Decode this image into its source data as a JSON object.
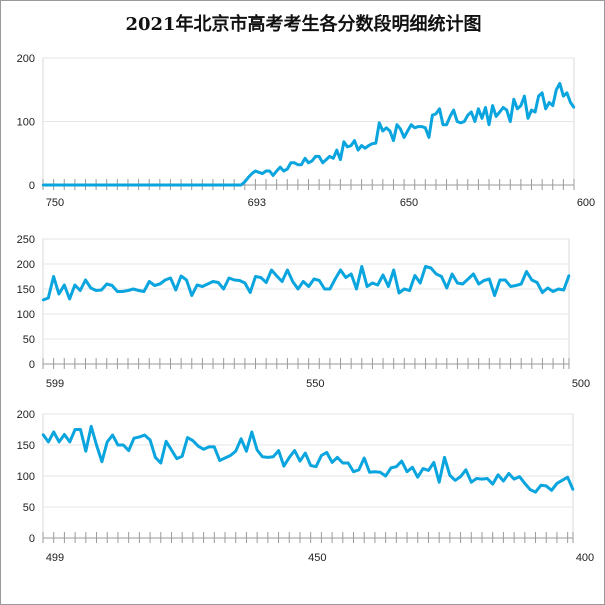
{
  "title": "2021年北京市高考考生各分数段明细统计图",
  "colors": {
    "line": "#0aa5de",
    "grid": "#e6e6e6",
    "axis": "#9a9a9a"
  },
  "chart_data": [
    {
      "type": "line",
      "xlabel": "",
      "ylabel": "",
      "x_start": 750,
      "x_end": 600,
      "x_tick_labels": [
        {
          "label": "750",
          "value": 750
        },
        {
          "label": "693",
          "value": 693
        },
        {
          "label": "650",
          "value": 650
        },
        {
          "label": "600",
          "value": 600
        }
      ],
      "ylim": [
        0,
        200
      ],
      "y_ticks": [
        0,
        100,
        200
      ],
      "grid": true,
      "values": [
        0,
        0,
        0,
        0,
        0,
        0,
        0,
        0,
        0,
        0,
        0,
        0,
        0,
        0,
        0,
        0,
        0,
        0,
        0,
        0,
        0,
        0,
        0,
        0,
        0,
        0,
        0,
        0,
        0,
        0,
        0,
        0,
        0,
        0,
        0,
        0,
        0,
        0,
        0,
        0,
        0,
        0,
        0,
        0,
        0,
        0,
        0,
        0,
        0,
        0,
        0,
        0,
        0,
        0,
        0,
        0,
        0,
        5,
        12,
        18,
        22,
        20,
        18,
        22,
        22,
        15,
        22,
        28,
        22,
        25,
        35,
        35,
        32,
        32,
        42,
        35,
        38,
        45,
        45,
        35,
        40,
        45,
        42,
        55,
        40,
        68,
        60,
        62,
        70,
        55,
        62,
        58,
        62,
        65,
        66,
        98,
        85,
        90,
        85,
        70,
        95,
        88,
        75,
        85,
        95,
        90,
        92,
        92,
        90,
        75,
        110,
        112,
        120,
        95,
        95,
        108,
        118,
        100,
        98,
        100,
        110,
        115,
        100,
        120,
        105,
        122,
        95,
        125,
        108,
        115,
        122,
        118,
        100,
        135,
        120,
        125,
        140,
        105,
        118,
        115,
        140,
        145,
        120,
        130,
        125,
        150,
        160,
        140,
        145,
        130,
        122
      ]
    },
    {
      "type": "line",
      "xlabel": "",
      "ylabel": "",
      "x_start": 599,
      "x_end": 500,
      "x_tick_labels": [
        {
          "label": "599",
          "value": 599
        },
        {
          "label": "550",
          "value": 550
        },
        {
          "label": "500",
          "value": 500
        }
      ],
      "ylim": [
        0,
        250
      ],
      "y_ticks": [
        0,
        50,
        100,
        150,
        200,
        250
      ],
      "grid": true,
      "values": [
        128,
        132,
        175,
        140,
        158,
        130,
        158,
        147,
        168,
        152,
        147,
        148,
        160,
        157,
        145,
        145,
        147,
        150,
        147,
        145,
        165,
        157,
        160,
        168,
        172,
        148,
        176,
        168,
        137,
        158,
        155,
        160,
        165,
        163,
        150,
        172,
        168,
        167,
        162,
        143,
        175,
        173,
        163,
        188,
        176,
        165,
        188,
        165,
        150,
        165,
        155,
        170,
        167,
        150,
        150,
        170,
        188,
        173,
        180,
        150,
        195,
        155,
        162,
        158,
        178,
        155,
        188,
        142,
        150,
        147,
        177,
        162,
        195,
        192,
        180,
        175,
        152,
        180,
        162,
        160,
        170,
        180,
        160,
        167,
        170,
        137,
        168,
        168,
        155,
        157,
        160,
        185,
        168,
        163,
        143,
        152,
        145,
        150,
        148,
        177
      ]
    },
    {
      "type": "line",
      "xlabel": "",
      "ylabel": "",
      "x_start": 499,
      "x_end": 400,
      "x_tick_labels": [
        {
          "label": "499",
          "value": 499
        },
        {
          "label": "450",
          "value": 450
        },
        {
          "label": "400",
          "value": 400
        }
      ],
      "ylim": [
        0,
        200
      ],
      "y_ticks": [
        0,
        50,
        100,
        150,
        200
      ],
      "grid": true,
      "values": [
        167,
        155,
        171,
        155,
        167,
        155,
        175,
        175,
        140,
        180,
        150,
        123,
        155,
        166,
        150,
        150,
        141,
        161,
        163,
        166,
        158,
        130,
        121,
        156,
        142,
        128,
        132,
        162,
        157,
        148,
        143,
        147,
        147,
        125,
        129,
        133,
        140,
        160,
        140,
        171,
        142,
        131,
        130,
        131,
        141,
        116,
        130,
        141,
        124,
        137,
        117,
        115,
        133,
        138,
        122,
        130,
        121,
        121,
        107,
        110,
        129,
        106,
        107,
        106,
        100,
        113,
        115,
        124,
        107,
        114,
        98,
        112,
        109,
        122,
        90,
        130,
        101,
        93,
        99,
        110,
        90,
        96,
        95,
        96,
        87,
        102,
        92,
        104,
        95,
        99,
        88,
        78,
        74,
        85,
        84,
        77,
        88,
        93,
        98,
        78
      ]
    }
  ]
}
